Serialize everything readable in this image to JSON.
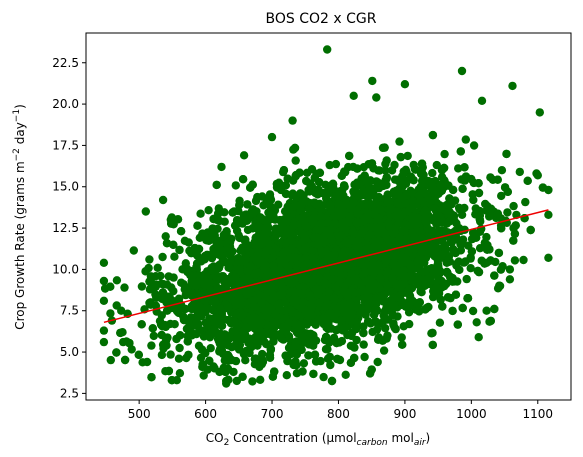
{
  "chart_data": {
    "type": "scatter",
    "title": "BOS CO2 x CGR",
    "xlabel": {
      "prefix": "CO",
      "prefix_sub": "2",
      "main": " Concentration (µmol",
      "main_sub": "carbon",
      "mid": " mol",
      "mid_sub": "air",
      "suffix": ")"
    },
    "ylabel": {
      "main": "Crop Growth Rate (grams m",
      "sup1": "−2",
      "mid": " day",
      "sup2": "−1",
      "suffix": ")"
    },
    "xlim": [
      420,
      1150
    ],
    "ylim": [
      2.1,
      24.3
    ],
    "xticks": [
      500,
      600,
      700,
      800,
      900,
      1000,
      1100
    ],
    "xtick_labels": [
      "500",
      "600",
      "700",
      "800",
      "900",
      "1000",
      "1100"
    ],
    "yticks": [
      2.5,
      5.0,
      7.5,
      10.0,
      12.5,
      15.0,
      17.5,
      20.0,
      22.5
    ],
    "ytick_labels": [
      "2.5",
      "5.0",
      "7.5",
      "10.0",
      "12.5",
      "15.0",
      "17.5",
      "20.0",
      "22.5"
    ],
    "grid": false,
    "point_color": "#006e00",
    "trend_color": "#ee0000",
    "trend_line": {
      "x": [
        447,
        1116
      ],
      "y": [
        6.8,
        13.6
      ]
    },
    "cloud": {
      "x_center": 780,
      "x_sd": 110,
      "slope": 0.0102,
      "intercept": 2.25,
      "resid_sd": 2.3,
      "n": 6000
    },
    "outliers": [
      {
        "x": 783,
        "y": 23.3
      },
      {
        "x": 986,
        "y": 22.0
      },
      {
        "x": 851,
        "y": 21.4
      },
      {
        "x": 900,
        "y": 21.2
      },
      {
        "x": 1062,
        "y": 21.1
      },
      {
        "x": 823,
        "y": 20.5
      },
      {
        "x": 857,
        "y": 20.4
      },
      {
        "x": 1016,
        "y": 20.2
      },
      {
        "x": 1103,
        "y": 19.5
      },
      {
        "x": 1073,
        "y": 15.9
      },
      {
        "x": 1098,
        "y": 15.8
      },
      {
        "x": 1116,
        "y": 14.8
      },
      {
        "x": 1116,
        "y": 13.3
      },
      {
        "x": 1116,
        "y": 10.7
      },
      {
        "x": 1058,
        "y": 10.0
      },
      {
        "x": 1058,
        "y": 9.4
      },
      {
        "x": 1023,
        "y": 10.4
      },
      {
        "x": 1023,
        "y": 7.5
      },
      {
        "x": 1008,
        "y": 6.8
      },
      {
        "x": 1011,
        "y": 5.9
      },
      {
        "x": 447,
        "y": 10.4
      },
      {
        "x": 447,
        "y": 9.3
      },
      {
        "x": 447,
        "y": 8.1
      },
      {
        "x": 447,
        "y": 6.3
      },
      {
        "x": 447,
        "y": 5.6
      },
      {
        "x": 478,
        "y": 8.9
      },
      {
        "x": 473,
        "y": 7.5
      },
      {
        "x": 459,
        "y": 6.9
      },
      {
        "x": 475,
        "y": 6.2
      },
      {
        "x": 476,
        "y": 5.6
      },
      {
        "x": 510,
        "y": 13.5
      },
      {
        "x": 536,
        "y": 14.2
      },
      {
        "x": 540,
        "y": 12.0
      },
      {
        "x": 532,
        "y": 9.6
      },
      {
        "x": 512,
        "y": 4.4
      },
      {
        "x": 560,
        "y": 4.6
      },
      {
        "x": 595,
        "y": 4.1
      },
      {
        "x": 621,
        "y": 3.8
      },
      {
        "x": 631,
        "y": 3.1
      },
      {
        "x": 642,
        "y": 3.8
      },
      {
        "x": 681,
        "y": 4.1
      },
      {
        "x": 859,
        "y": 4.4
      },
      {
        "x": 624,
        "y": 16.2
      },
      {
        "x": 658,
        "y": 16.9
      },
      {
        "x": 700,
        "y": 18.0
      },
      {
        "x": 731,
        "y": 19.0
      }
    ]
  }
}
